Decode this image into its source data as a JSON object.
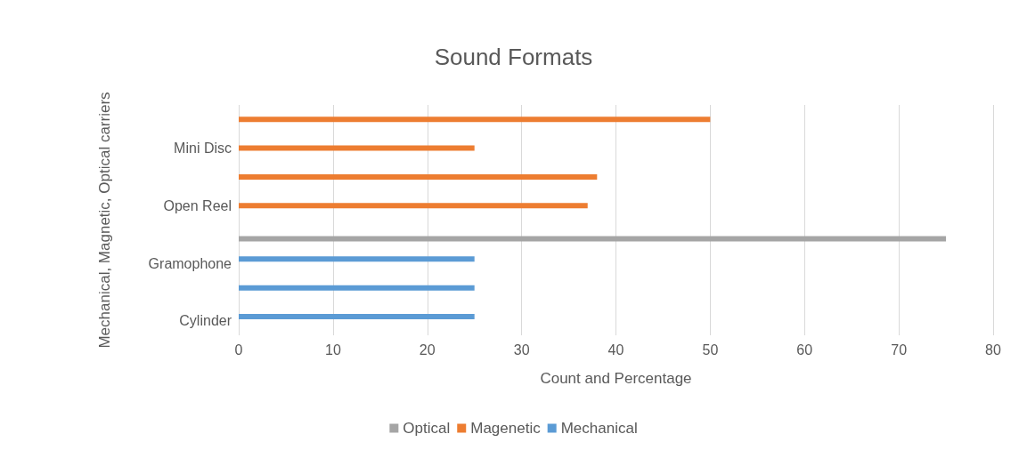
{
  "chart_data": {
    "type": "bar",
    "orientation": "horizontal",
    "title": "Sound Formats",
    "xlabel": "Count and Percentage",
    "ylabel": "Mechanical, Magnetic, Optical carriers",
    "categories": [
      null,
      "Mini Disc",
      null,
      "Open Reel",
      null,
      "Gramophone",
      null,
      "Cylinder"
    ],
    "series": [
      {
        "name": "Mechanical",
        "color": "#5b9bd5",
        "values": [
          null,
          null,
          null,
          null,
          null,
          25,
          25,
          25
        ]
      },
      {
        "name": "Magenetic",
        "color": "#ed7d31",
        "values": [
          50,
          25,
          38,
          37,
          null,
          null,
          null,
          null
        ]
      },
      {
        "name": "Optical",
        "color": "#a5a5a5",
        "values": [
          null,
          null,
          null,
          null,
          75,
          null,
          null,
          null
        ]
      }
    ],
    "xlim": [
      0,
      80
    ],
    "xticks": [
      0,
      10,
      20,
      30,
      40,
      50,
      60,
      70,
      80
    ],
    "grid": "x",
    "legend": "bottom"
  }
}
